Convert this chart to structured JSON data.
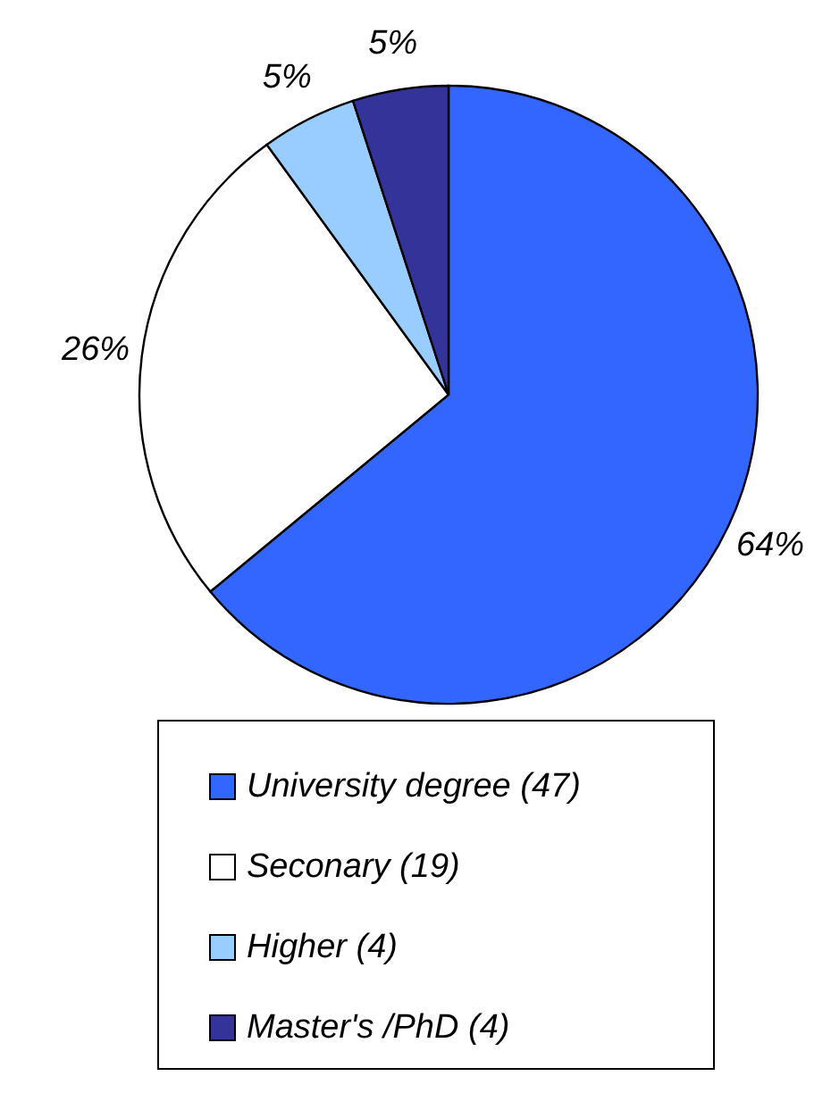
{
  "chart_data": {
    "type": "pie",
    "categories": [
      "University degree (47)",
      "Seconary (19)",
      "Higher (4)",
      "Master's /PhD (4)"
    ],
    "values": [
      64,
      26,
      5,
      5
    ],
    "colors": [
      "#3366ff",
      "#ffffff",
      "#99ccff",
      "#333399"
    ],
    "value_labels": [
      "64%",
      "26%",
      "5%",
      "5%"
    ],
    "legend": "bottom"
  }
}
